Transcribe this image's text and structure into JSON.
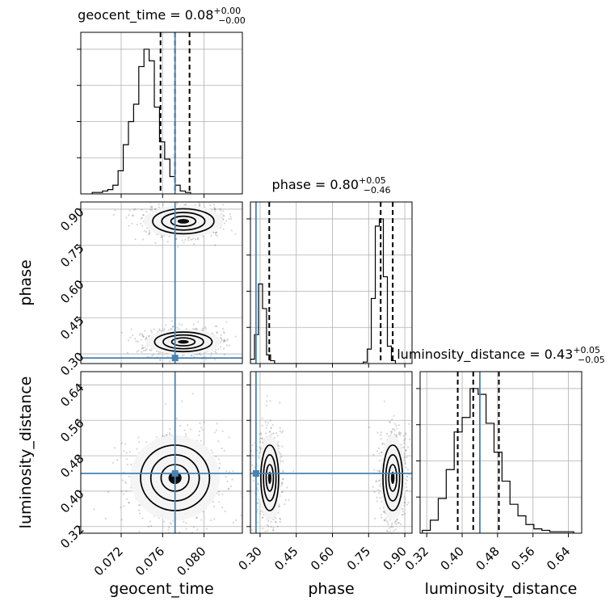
{
  "chart_data": {
    "type": "corner",
    "parameters": [
      "geocent_time",
      "phase",
      "luminosity_distance"
    ],
    "truths": {
      "geocent_time": 0.0772,
      "phase": 0.283,
      "luminosity_distance": 0.44
    },
    "titles": {
      "geocent_time": {
        "name": "geocent_time",
        "median": "0.08",
        "plus": "+0.00",
        "minus": "−0.00"
      },
      "phase": {
        "name": "phase",
        "median": "0.80",
        "plus": "+0.05",
        "minus": "−0.46"
      },
      "luminosity_distance": {
        "name": "luminosity_distance",
        "median": "0.43",
        "plus": "+0.05",
        "minus": "−0.05"
      }
    },
    "axis_labels": {
      "geocent_time": "geocent_time",
      "phase": "phase",
      "luminosity_distance": "luminosity_distance"
    },
    "ticks": {
      "geocent_time": {
        "values": [
          0.072,
          0.076,
          0.08
        ],
        "labels": [
          "0.072",
          "0.076",
          "0.080"
        ]
      },
      "phase": {
        "values": [
          0.3,
          0.45,
          0.6,
          0.75,
          0.9
        ],
        "labels": [
          "0.30",
          "0.45",
          "0.60",
          "0.75",
          "0.90"
        ]
      },
      "luminosity_distance": {
        "values": [
          0.32,
          0.4,
          0.48,
          0.56,
          0.64
        ],
        "labels": [
          "0.32",
          "0.40",
          "0.48",
          "0.56",
          "0.64"
        ]
      }
    },
    "ranges": {
      "geocent_time": [
        0.0681,
        0.0837
      ],
      "phase": [
        0.26,
        0.93
      ],
      "luminosity_distance": [
        0.305,
        0.67
      ]
    },
    "quantiles": {
      "geocent_time": [
        0.0758,
        0.0772,
        0.0786
      ],
      "phase": [
        0.338,
        0.8,
        0.85
      ],
      "luminosity_distance": [
        0.39,
        0.425,
        0.483
      ]
    },
    "histograms": {
      "geocent_time": {
        "edges_start": 0.0692,
        "bin_width": 0.0005,
        "counts": [
          1,
          1,
          2,
          3,
          6,
          16,
          34,
          50,
          62,
          88,
          100,
          92,
          60,
          36,
          24,
          12,
          6,
          2,
          1
        ]
      },
      "phase": {
        "edges_start": 0.26,
        "bin_width": 0.0167,
        "counts": [
          3,
          20,
          55,
          38,
          6,
          2,
          0,
          0,
          0,
          0,
          0,
          0,
          0,
          0,
          0,
          0,
          0,
          0,
          0,
          0,
          0,
          0,
          0,
          0,
          0,
          0,
          0,
          0,
          1,
          10,
          45,
          95,
          100,
          60,
          12,
          2
        ]
      },
      "luminosity_distance": {
        "edges_start": 0.31,
        "bin_width": 0.018,
        "counts": [
          2,
          9,
          24,
          44,
          70,
          80,
          100,
          96,
          76,
          56,
          36,
          20,
          12,
          6,
          3,
          2,
          1,
          1,
          1
        ]
      }
    },
    "blobs": {
      "geocent_time|phase": [
        {
          "cx": 0.078,
          "cy": 0.85,
          "sx": 0.0016,
          "sy": 0.028
        },
        {
          "cx": 0.078,
          "cy": 0.35,
          "sx": 0.0015,
          "sy": 0.022
        }
      ],
      "geocent_time|luminosity_distance": [
        {
          "cx": 0.0772,
          "cy": 0.43,
          "sx": 0.0018,
          "sy": 0.04
        }
      ],
      "phase|luminosity_distance": [
        {
          "cx": 0.34,
          "cy": 0.43,
          "sx": 0.02,
          "sy": 0.04
        },
        {
          "cx": 0.85,
          "cy": 0.43,
          "sx": 0.022,
          "sy": 0.04
        }
      ]
    },
    "grid": true
  }
}
